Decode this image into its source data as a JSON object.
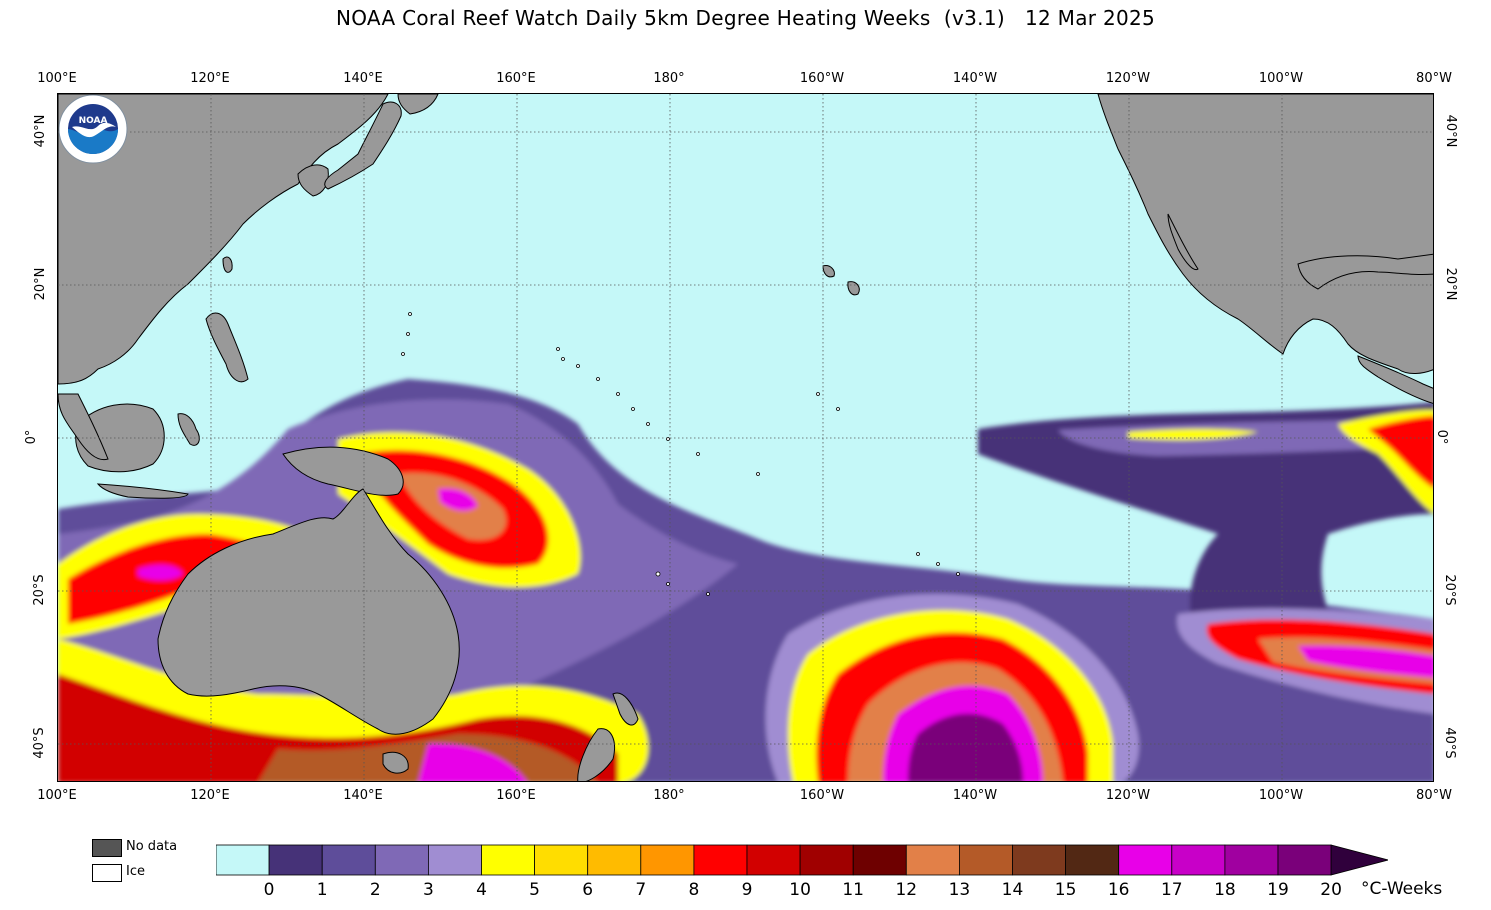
{
  "title": "NOAA Coral Reef Watch Daily 5km Degree Heating Weeks  (v3.1)   12 Mar 2025",
  "map": {
    "lon_labels": [
      "100°E",
      "120°E",
      "140°E",
      "160°E",
      "180°",
      "160°W",
      "140°W",
      "120°W",
      "100°W",
      "80°W"
    ],
    "lat_labels": [
      "40°N",
      "20°N",
      "0°",
      "20°S",
      "40°S"
    ],
    "colors": {
      "ocean": "#c5f8f8",
      "land": "#999999",
      "grid": "#555555"
    },
    "logo_text": "NOAA",
    "logo_ring_text": "NATIONAL OCEANIC AND ATMOSPHERIC ADMINISTRATION · U.S. DEPARTMENT OF COMMERCE"
  },
  "legend": {
    "nodata_label": "No data",
    "nodata_color": "#555555",
    "ice_label": "Ice",
    "ice_color": "#ffffff"
  },
  "colorbar": {
    "ticks": [
      "0",
      "1",
      "2",
      "3",
      "4",
      "5",
      "6",
      "7",
      "8",
      "9",
      "10",
      "11",
      "12",
      "13",
      "14",
      "15",
      "16",
      "17",
      "18",
      "19",
      "20"
    ],
    "colors": [
      "#c5f8f8",
      "#463278",
      "#5e4d9a",
      "#7f69b6",
      "#a08dd2",
      "#ffff00",
      "#ffdd00",
      "#ffbb00",
      "#ff9600",
      "#ff0000",
      "#d20000",
      "#a00000",
      "#6e0000",
      "#e28048",
      "#b45a28",
      "#7e3a1e",
      "#522814",
      "#e800e8",
      "#c800c8",
      "#a000a0",
      "#7a007a"
    ],
    "extend_color": "#30003c",
    "unit": "°C-Weeks"
  }
}
